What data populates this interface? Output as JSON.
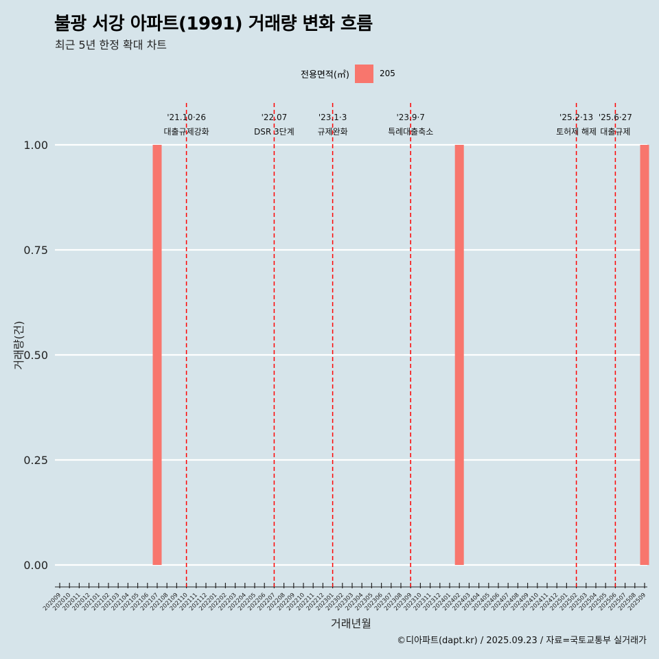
{
  "title": "불광 서강 아파트(1991) 거래량 변화 흐름",
  "subtitle": "최근 5년 한정 확대 차트",
  "legend": {
    "title": "전용면적(㎡)",
    "entries": [
      {
        "label": "205",
        "color": "#f8766d"
      }
    ]
  },
  "caption": "©디아파트(dapt.kr) / 2025.09.23 / 자료=국토교통부 실거래가",
  "chart_data": {
    "type": "bar",
    "title": "불광 서강 아파트(1991) 거래량 변화 흐름",
    "xlabel": "거래년월",
    "ylabel": "거래량(건)",
    "ylim": [
      0,
      1.0
    ],
    "yticks": [
      "0.00",
      "0.25",
      "0.50",
      "0.75",
      "1.00"
    ],
    "ytick_values": [
      0,
      0.25,
      0.5,
      0.75,
      1.0
    ],
    "categories": [
      "202009",
      "202010",
      "202011",
      "202012",
      "202101",
      "202102",
      "202103",
      "202104",
      "202105",
      "202106",
      "202107",
      "202108",
      "202109",
      "202110",
      "202111",
      "202112",
      "202201",
      "202202",
      "202203",
      "202204",
      "202205",
      "202206",
      "202207",
      "202208",
      "202209",
      "202210",
      "202211",
      "202212",
      "202301",
      "202302",
      "202303",
      "202304",
      "202305",
      "202306",
      "202307",
      "202308",
      "202309",
      "202310",
      "202311",
      "202312",
      "202401",
      "202402",
      "202403",
      "202404",
      "202405",
      "202406",
      "202407",
      "202408",
      "202409",
      "202410",
      "202411",
      "202412",
      "202501",
      "202502",
      "202503",
      "202504",
      "202505",
      "202506",
      "202507",
      "202508",
      "202509"
    ],
    "series": [
      {
        "name": "205",
        "color": "#f8766d",
        "points": [
          {
            "x": "202107",
            "value": 1
          },
          {
            "x": "202402",
            "value": 1
          },
          {
            "x": "202509",
            "value": 1
          }
        ]
      }
    ],
    "annotations": [
      {
        "x": "202110",
        "date": "'21.10·26",
        "label": "대출규제강화"
      },
      {
        "x": "202207",
        "date": "'22.07",
        "label": "DSR 3단계"
      },
      {
        "x": "202301",
        "date": "'23.1·3",
        "label": "규제완화"
      },
      {
        "x": "202309",
        "date": "'23.9·7",
        "label": "특례대출축소"
      },
      {
        "x": "202502",
        "date": "'25.2·13",
        "label": "토허제 해제"
      },
      {
        "x": "202506",
        "date": "'25.6·27",
        "label": "대출규제"
      }
    ]
  }
}
